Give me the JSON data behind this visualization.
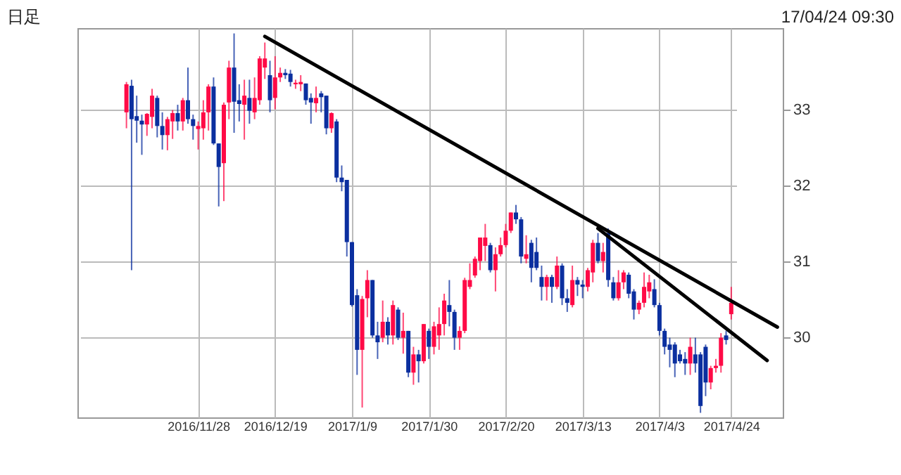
{
  "chart_data": {
    "type": "candlestick",
    "annotations": [
      "日足",
      "17/04/24 09:30"
    ],
    "categories": [
      null,
      null,
      null,
      null,
      null,
      null,
      null,
      null,
      null,
      null,
      null,
      null,
      null,
      null,
      "2016/11/28",
      null,
      null,
      null,
      null,
      null,
      null,
      null,
      null,
      null,
      null,
      null,
      null,
      null,
      null,
      "2016/12/19",
      null,
      null,
      null,
      null,
      null,
      null,
      null,
      null,
      null,
      null,
      null,
      null,
      null,
      null,
      "2017/1/9",
      null,
      null,
      null,
      null,
      null,
      null,
      null,
      null,
      null,
      null,
      null,
      null,
      null,
      null,
      "2017/1/30",
      null,
      null,
      null,
      null,
      null,
      null,
      null,
      null,
      null,
      null,
      null,
      null,
      null,
      null,
      "2017/2/20",
      null,
      null,
      null,
      null,
      null,
      null,
      null,
      null,
      null,
      null,
      null,
      null,
      null,
      null,
      "2017/3/13",
      null,
      null,
      null,
      null,
      null,
      null,
      null,
      null,
      null,
      null,
      null,
      null,
      null,
      null,
      "2017/4/3",
      null,
      null,
      null,
      null,
      null,
      null,
      null,
      null,
      null,
      null,
      null,
      null,
      null,
      "2017/4/24",
      null,
      null,
      null,
      null,
      null,
      null,
      null,
      null,
      null
    ],
    "ohlc": [
      [
        32.96,
        33.36,
        32.75,
        33.33
      ],
      [
        33.31,
        33.39,
        30.88,
        32.87
      ],
      [
        32.91,
        33.18,
        32.56,
        32.85
      ],
      [
        32.85,
        32.93,
        32.4,
        32.8
      ],
      [
        32.8,
        32.95,
        32.65,
        32.94
      ],
      [
        32.9,
        33.27,
        32.75,
        33.18
      ],
      [
        33.15,
        33.18,
        32.63,
        32.78
      ],
      [
        32.78,
        32.96,
        32.47,
        32.66
      ],
      [
        32.66,
        32.9,
        32.46,
        32.87
      ],
      [
        32.84,
        32.99,
        32.61,
        32.95
      ],
      [
        32.95,
        33.06,
        32.72,
        32.84
      ],
      [
        32.84,
        33.15,
        32.72,
        33.12
      ],
      [
        33.12,
        33.55,
        32.81,
        32.87
      ],
      [
        32.87,
        32.93,
        32.6,
        32.78
      ],
      [
        32.74,
        32.84,
        32.47,
        32.78
      ],
      [
        32.75,
        33.12,
        32.6,
        32.96
      ],
      [
        32.96,
        33.33,
        32.72,
        33.3
      ],
      [
        33.3,
        33.42,
        32.53,
        32.55
      ],
      [
        32.55,
        32.55,
        31.72,
        32.24
      ],
      [
        32.29,
        33.09,
        31.79,
        33.06
      ],
      [
        33.09,
        33.64,
        32.87,
        33.55
      ],
      [
        33.55,
        34.0,
        32.69,
        33.1
      ],
      [
        33.12,
        33.33,
        32.84,
        33.07
      ],
      [
        33.06,
        33.39,
        32.6,
        33.18
      ],
      [
        33.15,
        33.39,
        32.81,
        32.98
      ],
      [
        32.96,
        33.42,
        32.87,
        33.15
      ],
      [
        33.12,
        33.7,
        33.06,
        33.67
      ],
      [
        33.55,
        33.88,
        33.4,
        33.67
      ],
      [
        33.45,
        33.64,
        32.96,
        33.12
      ],
      [
        33.15,
        33.7,
        33.0,
        33.42
      ],
      [
        33.42,
        33.55,
        33.36,
        33.48
      ],
      [
        33.48,
        33.53,
        33.4,
        33.45
      ],
      [
        33.47,
        33.52,
        33.3,
        33.36
      ],
      [
        33.33,
        33.39,
        33.27,
        33.35
      ],
      [
        33.33,
        33.45,
        33.24,
        33.36
      ],
      [
        33.34,
        33.34,
        33.06,
        33.12
      ],
      [
        33.15,
        33.21,
        32.81,
        33.09
      ],
      [
        33.08,
        33.3,
        32.96,
        33.15
      ],
      [
        33.21,
        33.24,
        32.96,
        33.16
      ],
      [
        33.18,
        33.18,
        32.67,
        32.75
      ],
      [
        32.75,
        32.96,
        32.69,
        32.95
      ],
      [
        32.84,
        32.87,
        32.04,
        32.1
      ],
      [
        32.1,
        32.26,
        31.92,
        32.04
      ],
      [
        32.07,
        32.07,
        31.06,
        31.25
      ],
      [
        31.25,
        31.25,
        30.4,
        30.42
      ],
      [
        30.55,
        30.63,
        29.5,
        29.83
      ],
      [
        29.83,
        30.54,
        29.07,
        30.5
      ],
      [
        30.51,
        30.88,
        30.26,
        30.75
      ],
      [
        30.75,
        30.75,
        29.99,
        30.02
      ],
      [
        30.02,
        30.2,
        29.71,
        29.93
      ],
      [
        29.99,
        30.48,
        29.93,
        30.2
      ],
      [
        30.2,
        30.26,
        29.9,
        30.02
      ],
      [
        30.02,
        30.48,
        29.9,
        30.42
      ],
      [
        30.36,
        30.39,
        29.96,
        29.99
      ],
      [
        29.99,
        30.32,
        29.78,
        30.08
      ],
      [
        30.08,
        30.08,
        29.47,
        29.53
      ],
      [
        29.53,
        29.87,
        29.37,
        29.77
      ],
      [
        29.77,
        29.83,
        29.4,
        29.68
      ],
      [
        29.68,
        30.17,
        29.65,
        30.17
      ],
      [
        30.08,
        30.11,
        29.71,
        29.87
      ],
      [
        29.87,
        30.2,
        29.77,
        30.14
      ],
      [
        30.02,
        30.39,
        29.83,
        30.17
      ],
      [
        30.17,
        30.57,
        30.02,
        30.48
      ],
      [
        30.42,
        30.75,
        30.14,
        30.33
      ],
      [
        30.33,
        30.36,
        29.83,
        29.99
      ],
      [
        29.99,
        30.14,
        29.83,
        30.08
      ],
      [
        30.08,
        30.78,
        30.05,
        30.75
      ],
      [
        30.66,
        30.97,
        30.63,
        30.75
      ],
      [
        30.81,
        31.06,
        30.78,
        31.03
      ],
      [
        31.0,
        31.31,
        30.88,
        31.31
      ],
      [
        31.2,
        31.49,
        31.0,
        31.31
      ],
      [
        31.21,
        31.24,
        30.85,
        30.88
      ],
      [
        30.88,
        31.18,
        30.6,
        31.09
      ],
      [
        31.09,
        31.31,
        31.06,
        31.21
      ],
      [
        31.21,
        31.49,
        31.18,
        31.4
      ],
      [
        31.4,
        31.64,
        31.37,
        31.64
      ],
      [
        31.64,
        31.74,
        31.49,
        31.55
      ],
      [
        31.55,
        31.58,
        30.97,
        31.06
      ],
      [
        31.03,
        31.34,
        30.97,
        31.09
      ],
      [
        31.24,
        31.28,
        30.72,
        30.91
      ],
      [
        31.12,
        31.31,
        30.88,
        30.91
      ],
      [
        30.79,
        30.94,
        30.48,
        30.66
      ],
      [
        30.66,
        30.82,
        30.48,
        30.79
      ],
      [
        30.79,
        30.82,
        30.45,
        30.66
      ],
      [
        30.66,
        31.06,
        30.63,
        30.94
      ],
      [
        30.94,
        30.97,
        30.42,
        30.51
      ],
      [
        30.51,
        30.63,
        30.33,
        30.45
      ],
      [
        30.42,
        30.94,
        30.39,
        30.75
      ],
      [
        30.75,
        30.79,
        30.54,
        30.69
      ],
      [
        30.69,
        30.75,
        30.51,
        30.66
      ],
      [
        30.66,
        30.91,
        30.6,
        30.88
      ],
      [
        30.85,
        31.28,
        30.72,
        31.24
      ],
      [
        31.24,
        31.37,
        30.97,
        31.0
      ],
      [
        31.0,
        31.24,
        30.85,
        31.12
      ],
      [
        31.37,
        31.43,
        30.66,
        30.75
      ],
      [
        30.72,
        30.79,
        30.48,
        30.51
      ],
      [
        30.51,
        30.88,
        30.48,
        30.72
      ],
      [
        30.72,
        30.88,
        30.63,
        30.85
      ],
      [
        30.82,
        30.85,
        30.51,
        30.57
      ],
      [
        30.6,
        30.63,
        30.23,
        30.36
      ],
      [
        30.36,
        30.48,
        30.3,
        30.45
      ],
      [
        30.45,
        30.85,
        30.39,
        30.66
      ],
      [
        30.6,
        30.82,
        30.51,
        30.72
      ],
      [
        30.63,
        30.76,
        30.39,
        30.42
      ],
      [
        30.42,
        30.45,
        30.02,
        30.08
      ],
      [
        30.08,
        30.11,
        29.77,
        29.87
      ],
      [
        29.9,
        29.99,
        29.6,
        29.83
      ],
      [
        29.9,
        29.93,
        29.47,
        29.65
      ],
      [
        29.77,
        29.83,
        29.65,
        29.68
      ],
      [
        29.71,
        29.8,
        29.5,
        29.65
      ],
      [
        29.65,
        29.99,
        29.5,
        29.87
      ],
      [
        29.77,
        29.99,
        29.53,
        29.65
      ],
      [
        29.77,
        29.8,
        29.0,
        29.09
      ],
      [
        29.87,
        29.9,
        29.22,
        29.4
      ],
      [
        29.4,
        29.62,
        29.31,
        29.59
      ],
      [
        29.59,
        29.71,
        29.53,
        29.62
      ],
      [
        29.62,
        30.05,
        29.53,
        29.99
      ],
      [
        30.02,
        30.08,
        29.9,
        29.96
      ],
      [
        30.3,
        30.66,
        30.23,
        30.45
      ],
      null,
      null,
      null,
      null,
      null,
      null,
      null,
      null,
      null
    ],
    "colors": [
      "#ff0a46",
      "#0b2f9f",
      "#0b2f9f",
      "#0b2f9f",
      "#ff0a46",
      "#ff0a46",
      "#0b2f9f",
      "#0b2f9f",
      "#ff0a46",
      "#ff0a46",
      "#0b2f9f",
      "#ff0a46",
      "#0b2f9f",
      "#0b2f9f",
      "#ff0a46",
      "#ff0a46",
      "#ff0a46",
      "#0b2f9f",
      "#0b2f9f",
      "#ff0a46",
      "#ff0a46",
      "#0b2f9f",
      "#0b2f9f",
      "#ff0a46",
      "#0b2f9f",
      "#ff0a46",
      "#ff0a46",
      "#ff0a46",
      "#0b2f9f",
      "#ff0a46",
      "#ff0a46",
      "#0b2f9f",
      "#0b2f9f",
      "#ff0a46",
      "#ff0a46",
      "#0b2f9f",
      "#0b2f9f",
      "#ff0a46",
      "#0b2f9f",
      "#0b2f9f",
      "#ff0a46",
      "#0b2f9f",
      "#0b2f9f",
      "#0b2f9f",
      "#0b2f9f",
      "#0b2f9f",
      "#ff0a46",
      "#ff0a46",
      "#0b2f9f",
      "#0b2f9f",
      "#ff0a46",
      "#0b2f9f",
      "#ff0a46",
      "#0b2f9f",
      "#ff0a46",
      "#0b2f9f",
      "#ff0a46",
      "#0b2f9f",
      "#ff0a46",
      "#0b2f9f",
      "#ff0a46",
      "#ff0a46",
      "#ff0a46",
      "#0b2f9f",
      "#0b2f9f",
      "#ff0a46",
      "#ff0a46",
      "#ff0a46",
      "#ff0a46",
      "#ff0a46",
      "#ff0a46",
      "#0b2f9f",
      "#ff0a46",
      "#ff0a46",
      "#ff0a46",
      "#ff0a46",
      "#0b2f9f",
      "#0b2f9f",
      "#ff0a46",
      "#0b2f9f",
      "#0b2f9f",
      "#0b2f9f",
      "#ff0a46",
      "#0b2f9f",
      "#ff0a46",
      "#0b2f9f",
      "#0b2f9f",
      "#ff0a46",
      "#0b2f9f",
      "#0b2f9f",
      "#ff0a46",
      "#ff0a46",
      "#0b2f9f",
      "#ff0a46",
      "#0b2f9f",
      "#0b2f9f",
      "#ff0a46",
      "#ff0a46",
      "#0b2f9f",
      "#0b2f9f",
      "#ff0a46",
      "#ff0a46",
      "#ff0a46",
      "#0b2f9f",
      "#0b2f9f",
      "#0b2f9f",
      "#0b2f9f",
      "#0b2f9f",
      "#0b2f9f",
      "#0b2f9f",
      "#ff0a46",
      "#0b2f9f",
      "#0b2f9f",
      "#0b2f9f",
      "#ff0a46",
      "#ff0a46",
      "#ff0a46",
      "#0b2f9f",
      "#ff0a46",
      null,
      null,
      null,
      null,
      null,
      null,
      null,
      null,
      null
    ],
    "series": [
      {
        "type": "line",
        "color": "#000000",
        "values": [
          null,
          null,
          null,
          null,
          null,
          null,
          null,
          null,
          null,
          null,
          null,
          null,
          null,
          null,
          null,
          null,
          null,
          null,
          null,
          null,
          null,
          null,
          null,
          null,
          null,
          null,
          null,
          33.96,
          null,
          null,
          null,
          null,
          null,
          null,
          null,
          null,
          null,
          null,
          null,
          null,
          null,
          null,
          null,
          null,
          null,
          null,
          null,
          null,
          null,
          null,
          null,
          null,
          null,
          null,
          null,
          null,
          null,
          null,
          null,
          null,
          null,
          null,
          null,
          null,
          null,
          null,
          null,
          null,
          null,
          null,
          null,
          null,
          null,
          null,
          null,
          null,
          null,
          null,
          null,
          null,
          null,
          null,
          null,
          null,
          null,
          null,
          null,
          null,
          null,
          null,
          null,
          null,
          null,
          null,
          null,
          null,
          null,
          null,
          null,
          null,
          null,
          null,
          null,
          null,
          null,
          null,
          null,
          null,
          null,
          null,
          null,
          null,
          null,
          null,
          null,
          null,
          null,
          null,
          null,
          null,
          null,
          null,
          null,
          null,
          null,
          null,
          null,
          30.13
        ]
      },
      {
        "type": "line",
        "color": "#000000",
        "values": [
          null,
          null,
          null,
          null,
          null,
          null,
          null,
          null,
          null,
          null,
          null,
          null,
          null,
          null,
          null,
          null,
          null,
          null,
          null,
          null,
          null,
          null,
          null,
          null,
          null,
          null,
          null,
          null,
          null,
          null,
          null,
          null,
          null,
          null,
          null,
          null,
          null,
          null,
          null,
          null,
          null,
          null,
          null,
          null,
          null,
          null,
          null,
          null,
          null,
          null,
          null,
          null,
          null,
          null,
          null,
          null,
          null,
          null,
          null,
          null,
          null,
          null,
          null,
          null,
          null,
          null,
          null,
          null,
          null,
          null,
          null,
          null,
          null,
          null,
          null,
          null,
          null,
          null,
          null,
          null,
          null,
          null,
          null,
          null,
          null,
          null,
          null,
          null,
          null,
          null,
          null,
          null,
          31.43,
          null,
          null,
          null,
          null,
          null,
          null,
          null,
          null,
          null,
          null,
          null,
          null,
          null,
          null,
          null,
          null,
          null,
          null,
          null,
          null,
          null,
          null,
          null,
          null,
          null,
          null,
          null,
          null,
          null,
          null,
          null,
          null,
          29.69,
          null,
          null
        ]
      }
    ],
    "ylim": [
      28.94,
      34.07
    ],
    "yticks": [
      30,
      31,
      32,
      33
    ],
    "grid": true
  }
}
